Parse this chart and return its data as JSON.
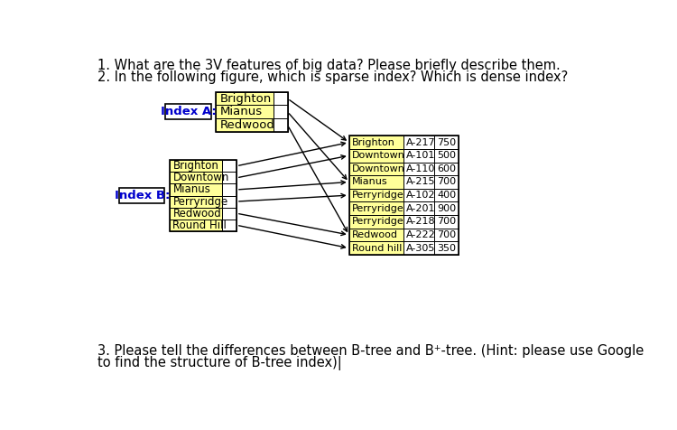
{
  "background_color": "#ffffff",
  "question1": "1. What are the 3V features of big data? Please briefly describe them.",
  "question2": "2. In the following figure, which is sparse index? Which is dense index?",
  "q3_line1": "3. Please tell the differences between B-tree and B⁺-tree. (Hint: please use Google",
  "q3_line2": "to find the structure of B-tree index)|",
  "index_a_label": "Index A:",
  "index_a_entries": [
    "Brighton",
    "Mianus",
    "Redwood"
  ],
  "index_b_label": "Index B:",
  "index_b_entries": [
    "Brighton",
    "Downtown",
    "Mianus",
    "Perryridge",
    "Redwood",
    "Round Hill"
  ],
  "data_table": [
    [
      "Brighton",
      "A-217",
      "750"
    ],
    [
      "Downtown",
      "A-101",
      "500"
    ],
    [
      "Downtown",
      "A-110",
      "600"
    ],
    [
      "Mianus",
      "A-215",
      "700"
    ],
    [
      "Perryridge",
      "A-102",
      "400"
    ],
    [
      "Perryridge",
      "A-201",
      "900"
    ],
    [
      "Perryridge",
      "A-218",
      "700"
    ],
    [
      "Redwood",
      "A-222",
      "700"
    ],
    [
      "Round hill",
      "A-305",
      "350"
    ]
  ],
  "index_a_color": "#ffff99",
  "index_b_color": "#ffff99",
  "dt_col1_color": "#ffff99",
  "index_a_arrow_targets": [
    0,
    3,
    7
  ],
  "index_b_arrow_targets": [
    0,
    1,
    3,
    4,
    7,
    8
  ],
  "font_size_main": 10.5,
  "font_size_table": 8.0,
  "font_size_index_a": 9.5,
  "font_size_index_b": 8.5,
  "font_size_label": 9.5
}
